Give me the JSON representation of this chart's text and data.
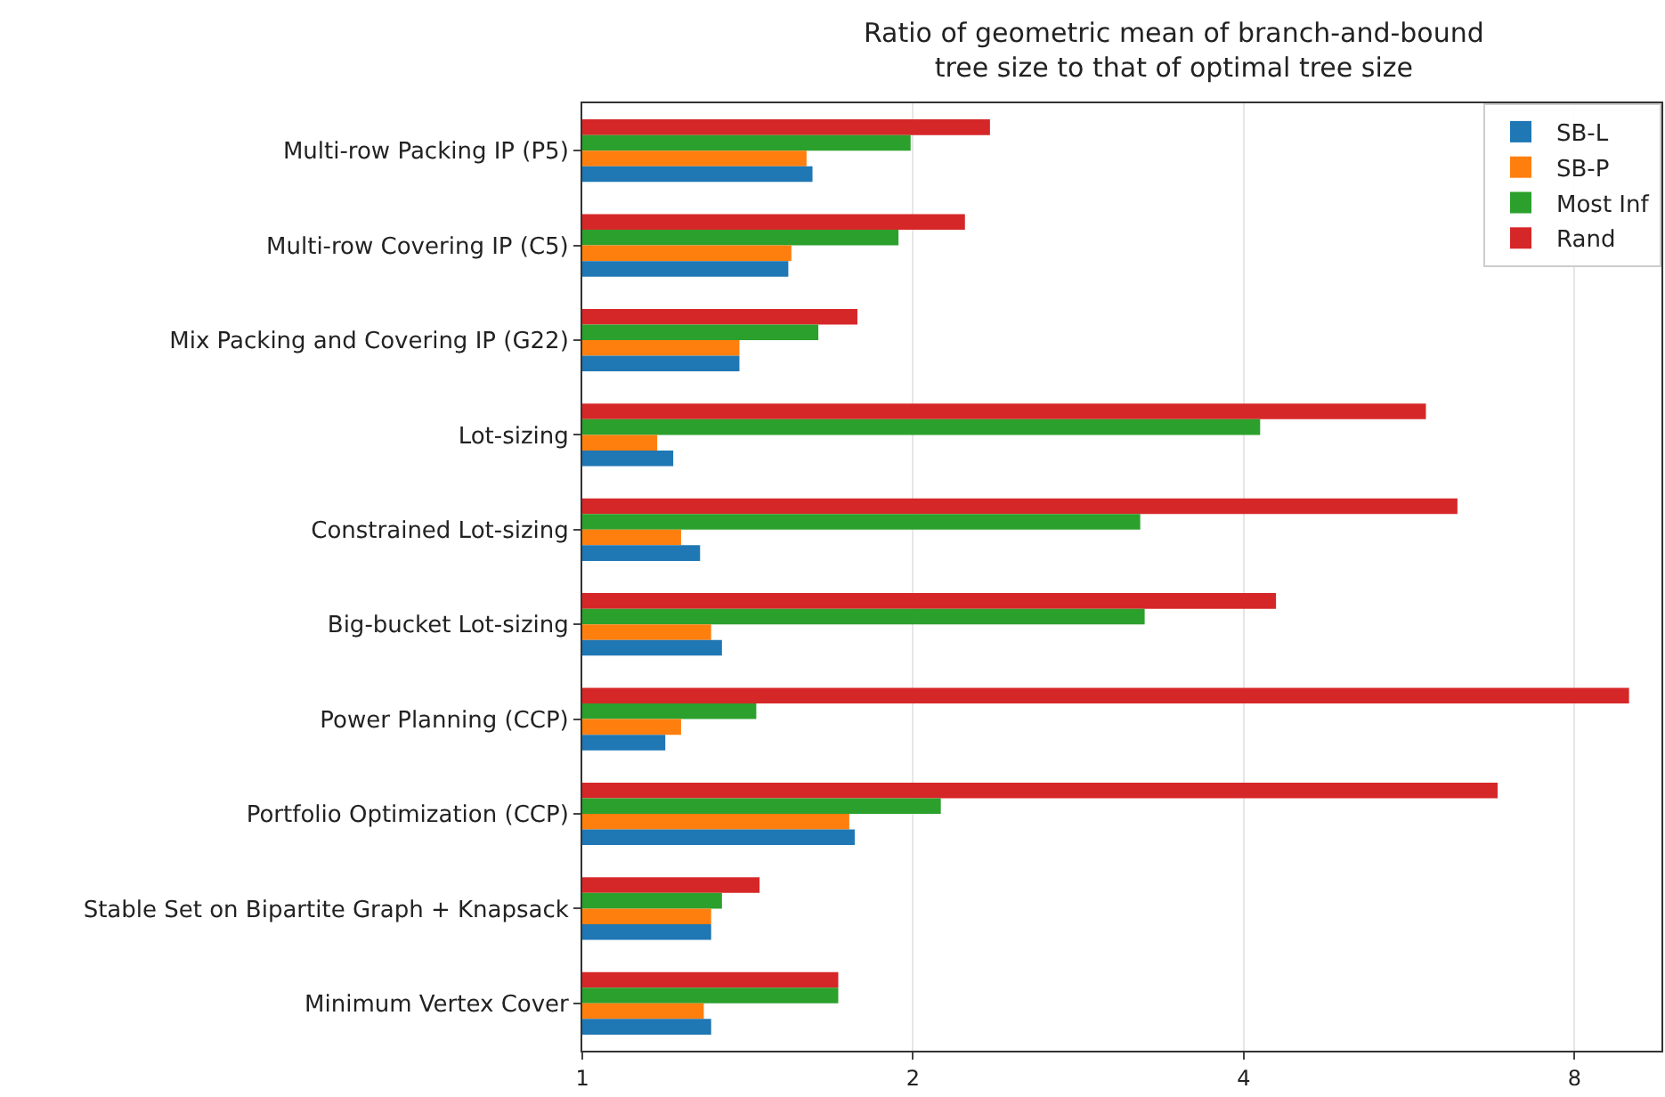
{
  "chart_data": {
    "type": "bar",
    "orientation": "horizontal",
    "title": "Ratio of geometric mean of branch-and-bound\ntree size to that of optimal tree size",
    "categories": [
      "Multi-row Packing IP (P5)",
      "Multi-row Covering IP (C5)",
      "Mix Packing and Covering IP (G22)",
      "Lot-sizing",
      "Constrained Lot-sizing",
      "Big-bucket Lot-sizing",
      "Power Planning (CCP)",
      "Portfolio Optimization (CCP)",
      "Stable Set on Bipartite Graph + Knapsack",
      "Minimum Vertex Cover"
    ],
    "series": [
      {
        "name": "SB-L",
        "color": "#1f77b4",
        "values": [
          1.62,
          1.54,
          1.39,
          1.21,
          1.28,
          1.34,
          1.19,
          1.77,
          1.31,
          1.31
        ]
      },
      {
        "name": "SB-P",
        "color": "#ff7f0e",
        "values": [
          1.6,
          1.55,
          1.39,
          1.17,
          1.23,
          1.31,
          1.23,
          1.75,
          1.31,
          1.29
        ]
      },
      {
        "name": "Most Inf",
        "color": "#2ca02c",
        "values": [
          1.99,
          1.94,
          1.64,
          4.14,
          3.22,
          3.25,
          1.44,
          2.12,
          1.34,
          1.71
        ]
      },
      {
        "name": "Rand",
        "color": "#d62728",
        "values": [
          2.35,
          2.23,
          1.78,
          5.86,
          6.26,
          4.28,
          8.97,
          6.81,
          1.45,
          1.71
        ]
      }
    ],
    "log": "x",
    "xlim": [
      1,
      9.6
    ],
    "xticks": [
      1,
      2,
      4,
      8
    ],
    "grid": "x",
    "legend": "top right"
  }
}
